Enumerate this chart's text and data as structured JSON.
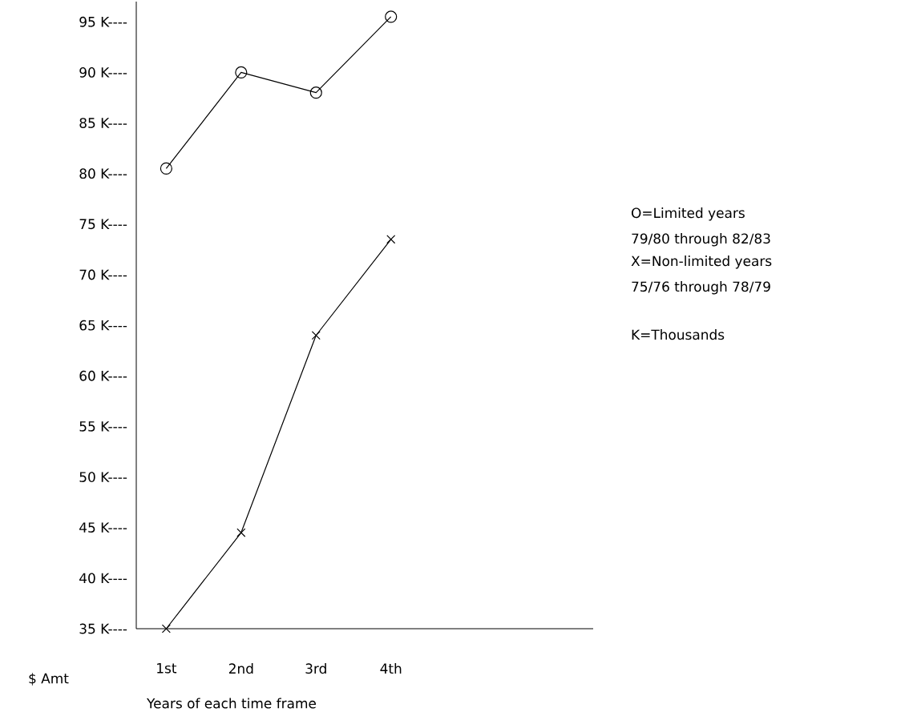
{
  "chart_data": {
    "type": "line",
    "xlabel": "Years of each time frame",
    "ylabel": "$ Amt",
    "categories": [
      "1st",
      "2nd",
      "3rd",
      "4th"
    ],
    "series": [
      {
        "color": "#000000",
        "marker": "circle",
        "values": [
          80.5,
          90,
          88,
          95.5
        ]
      },
      {
        "color": "#000000",
        "marker": "cross",
        "values": [
          35,
          44.5,
          64,
          73.5
        ]
      }
    ],
    "ylim": [
      35,
      97
    ],
    "yticks": [
      {
        "value": 35,
        "label": "35 K----"
      },
      {
        "value": 40,
        "label": "40 K----"
      },
      {
        "value": 45,
        "label": "45 K----"
      },
      {
        "value": 50,
        "label": "50 K----"
      },
      {
        "value": 55,
        "label": "55 K----"
      },
      {
        "value": 60,
        "label": "60 K----"
      },
      {
        "value": 65,
        "label": "65 K----"
      },
      {
        "value": 70,
        "label": "70 K----"
      },
      {
        "value": 75,
        "label": "75 K----"
      },
      {
        "value": 80,
        "label": "80 K----"
      },
      {
        "value": 85,
        "label": "85 K----"
      },
      {
        "value": 90,
        "label": "90 K----"
      },
      {
        "value": 95,
        "label": "95 K----"
      }
    ],
    "line_style": "solid",
    "grid": false,
    "annotations": [
      "O=Limited years",
      "79/80 through 82/83",
      "X=Non-limited years",
      "75/76 through 78/79",
      "K=Thousands"
    ]
  }
}
